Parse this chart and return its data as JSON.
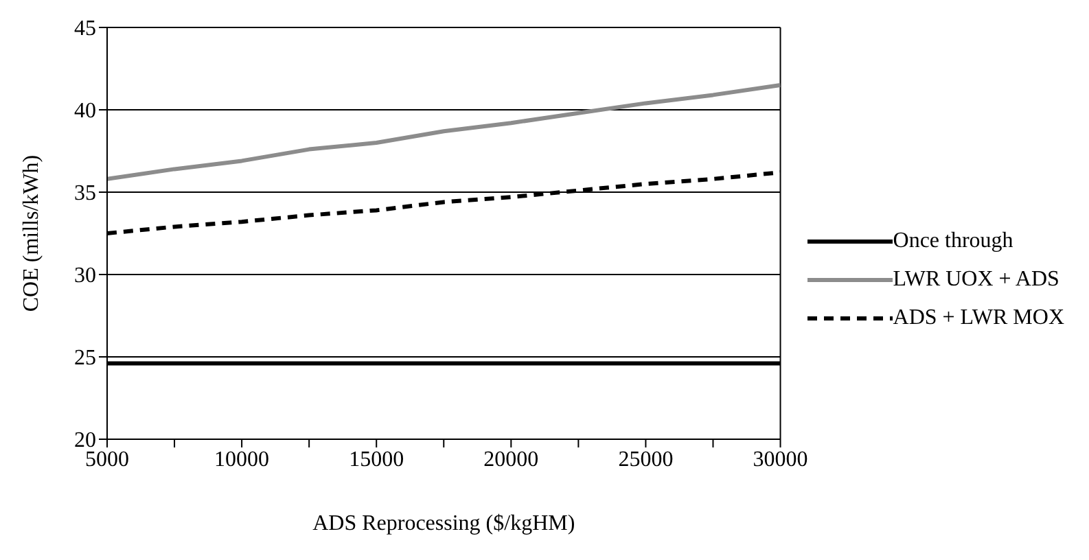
{
  "chart_data": {
    "type": "line",
    "xlabel": "ADS Reprocessing ($/kgHM)",
    "ylabel": "COE (mills/kWh)",
    "x": [
      5000,
      7500,
      10000,
      12500,
      15000,
      17500,
      20000,
      22500,
      25000,
      27500,
      30000
    ],
    "series": [
      {
        "name": "Once through",
        "color": "#000000",
        "line_style": "solid",
        "values": [
          24.6,
          24.6,
          24.6,
          24.6,
          24.6,
          24.6,
          24.6,
          24.6,
          24.6,
          24.6,
          24.6
        ]
      },
      {
        "name": "LWR UOX + ADS",
        "color": "#8c8c8c",
        "line_style": "solid",
        "values": [
          35.8,
          36.4,
          36.9,
          37.6,
          38.0,
          38.7,
          39.2,
          39.8,
          40.4,
          40.9,
          41.5
        ]
      },
      {
        "name": "ADS + LWR MOX",
        "color": "#000000",
        "line_style": "dashed",
        "values": [
          32.5,
          32.9,
          33.2,
          33.6,
          33.9,
          34.4,
          34.7,
          35.1,
          35.5,
          35.8,
          36.2
        ]
      }
    ],
    "xlim": [
      5000,
      30000
    ],
    "xticks": [
      5000,
      {
        "value": 7500,
        "label": null
      },
      10000,
      {
        "value": 12500,
        "label": null
      },
      15000,
      {
        "value": 17500,
        "label": null
      },
      20000,
      {
        "value": 22500,
        "label": null
      },
      25000,
      {
        "value": 27500,
        "label": null
      },
      30000
    ],
    "ylim": [
      20,
      45
    ],
    "yticks": [
      20,
      25,
      30,
      35,
      40,
      45
    ],
    "grid": "y",
    "legend": "right",
    "marker": "none"
  }
}
